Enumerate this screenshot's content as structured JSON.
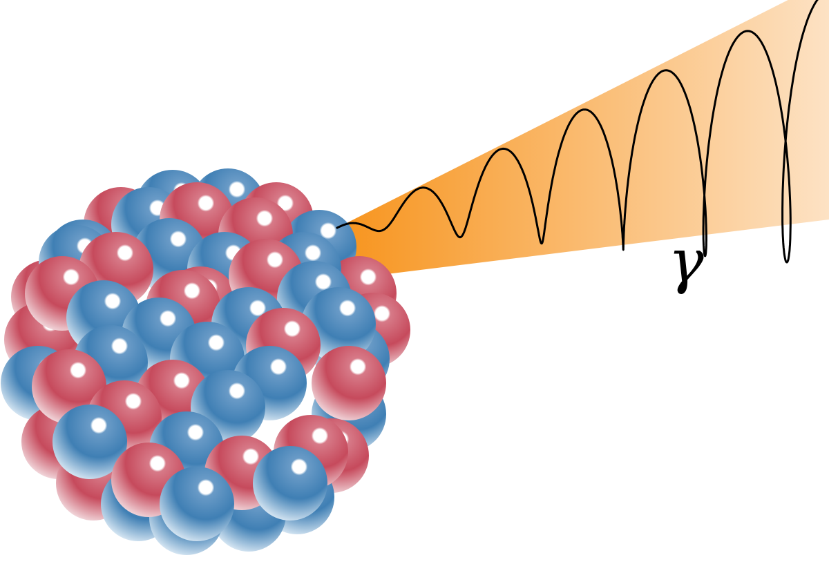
{
  "diagram": {
    "type": "gamma-emission-illustration",
    "emission_label": "γ",
    "nucleon_kinds": [
      {
        "kind": "proton",
        "color": "#c64a5c"
      },
      {
        "kind": "neutron",
        "color": "#3f7fb4"
      }
    ],
    "beam_colors": {
      "start": "#f7941d",
      "end": "#fde2c4"
    },
    "wave_color": "#000000"
  }
}
